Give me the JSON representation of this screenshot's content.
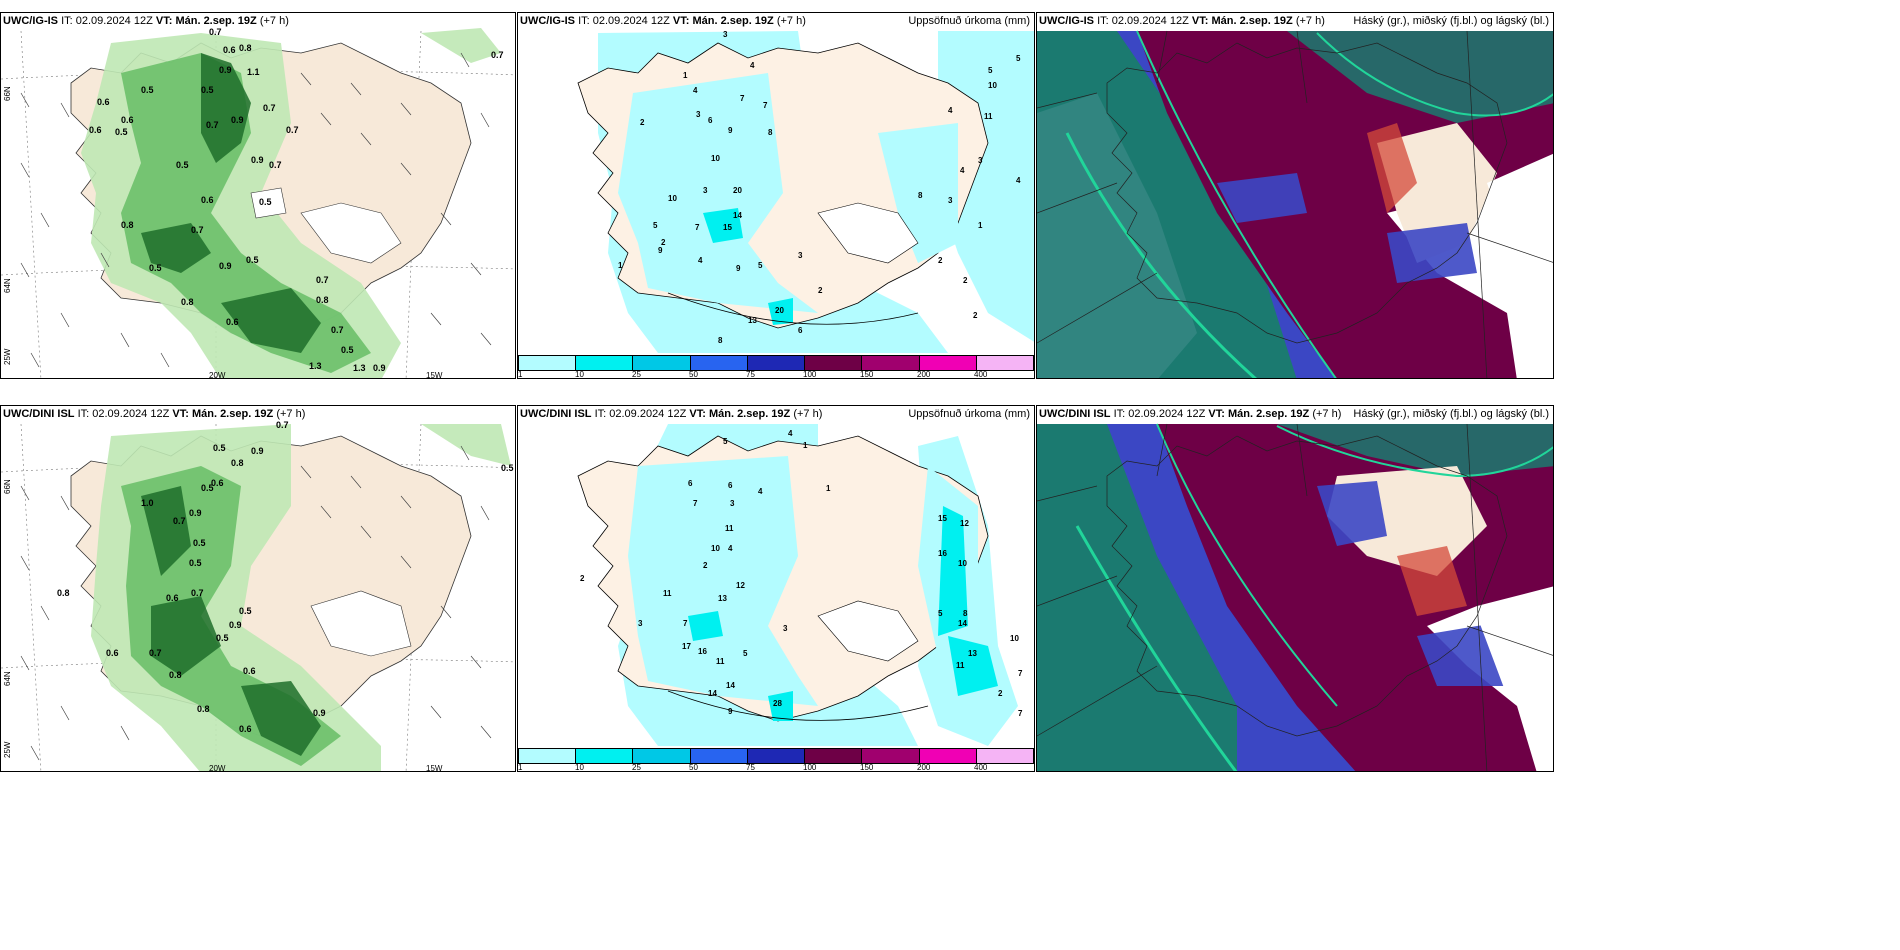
{
  "rows": [
    {
      "model": "UWC/IG-IS",
      "it_label": "IT:",
      "it_value": "02.09.2024 12Z",
      "vt_label": "VT:",
      "vt_value": "Mán. 2.sep. 19Z",
      "lead": "(+7 h)"
    },
    {
      "model": "UWC/DINI ISL",
      "it_label": "IT:",
      "it_value": "02.09.2024 12Z",
      "vt_label": "VT:",
      "vt_value": "Mán. 2.sep. 19Z",
      "lead": "(+7 h)"
    }
  ],
  "panels": {
    "precip_title": "Uppsöfnuð úrkoma (mm)",
    "cloud_title": "Háský (gr.), miðský (fj.bl.) og lágský (bl.)"
  },
  "colorbar": {
    "labels": [
      "1",
      "10",
      "25",
      "50",
      "75",
      "100",
      "150",
      "200",
      "400"
    ],
    "colors": [
      "#b3fcff",
      "#00f0f0",
      "#00c8e6",
      "#2864f0",
      "#1e28b4",
      "#6e0046",
      "#a0006e",
      "#f000b4",
      "#f5b4f5"
    ]
  },
  "axes": {
    "lat_top": "66N",
    "lat_mid": "64N",
    "lat_bot": "25W",
    "lon_left": "20W",
    "lon_right": "15W",
    "lat_right": "66N",
    "lat_right2": "64N"
  },
  "colors": {
    "land": "#f7e9d9",
    "sea": "#ffffff",
    "green_light": "#bfe8b4",
    "green_mid": "#6cc06a",
    "green_dark": "#1f6e2a",
    "cyan_light": "#b3fcff",
    "cyan_mid": "#00f0f0",
    "cloud_high": "#6e0046",
    "cloud_mid": "#3b47c4",
    "cloud_low": "#1b7a70",
    "cloud_edge": "#21d59a"
  },
  "labels": {
    "wind_vals_top": [
      "0.7",
      "0.6",
      "0.8",
      "0.9",
      "1.1",
      "0.5",
      "0.7",
      "0.6",
      "0.9",
      "0.5",
      "0.6",
      "0.5",
      "0.7",
      "0.6",
      "0.7",
      "0.5",
      "0.9",
      "0.7",
      "0.5",
      "0.8",
      "0.7",
      "0.6",
      "0.9",
      "0.5",
      "1.3",
      "1.3",
      "0.9",
      "0.7",
      "0.8",
      "0.6",
      "0.7",
      "0.5",
      "0.5",
      "0.8"
    ],
    "wind_vals_bot": [
      "0.7",
      "0.9",
      "0.5",
      "0.8",
      "0.5",
      "0.6",
      "1.0",
      "0.7",
      "0.9",
      "0.5",
      "0.7",
      "0.5",
      "0.6",
      "0.7",
      "0.9",
      "0.5",
      "0.8",
      "0.6",
      "0.9",
      "0.5",
      "0.5",
      "0.8",
      "0.6",
      "0.6",
      "0.8"
    ],
    "precip_vals_top": [
      "3",
      "4",
      "1",
      "4",
      "7",
      "7",
      "2",
      "3",
      "6",
      "9",
      "8",
      "10",
      "3",
      "20",
      "10",
      "14",
      "5",
      "15",
      "7",
      "2",
      "9",
      "9",
      "5",
      "4",
      "3",
      "20",
      "13",
      "6",
      "8",
      "2",
      "5",
      "4",
      "1",
      "4",
      "3",
      "2",
      "1",
      "5",
      "10",
      "11",
      "4",
      "3",
      "2",
      "8",
      "2"
    ],
    "precip_vals_bot": [
      "5",
      "4",
      "1",
      "6",
      "6",
      "4",
      "7",
      "3",
      "11",
      "10",
      "4",
      "2",
      "12",
      "11",
      "13",
      "7",
      "17",
      "16",
      "5",
      "11",
      "3",
      "14",
      "2",
      "8",
      "9",
      "28",
      "16",
      "15",
      "12",
      "10",
      "14",
      "13",
      "11",
      "7",
      "5",
      "2",
      "3",
      "1",
      "7",
      "14",
      "10"
    ]
  }
}
